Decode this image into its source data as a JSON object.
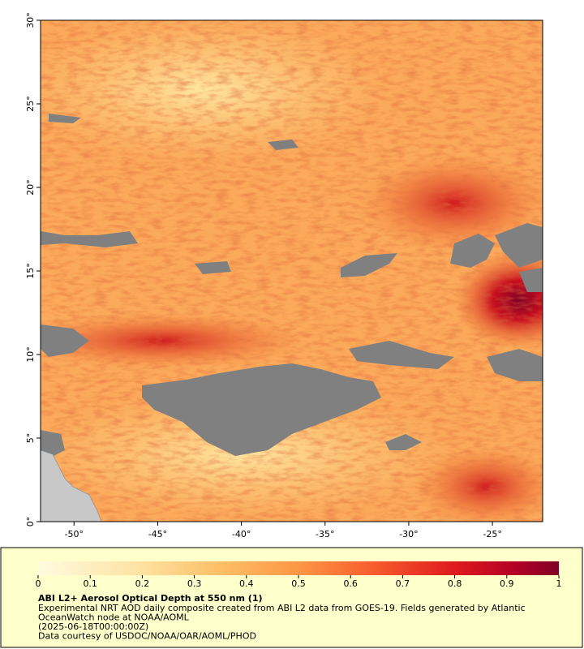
{
  "map": {
    "xlim": [
      -52,
      -22
    ],
    "ylim": [
      0,
      30
    ],
    "xticks": [
      {
        "value": -50,
        "label": "-50°"
      },
      {
        "value": -45,
        "label": "-45°"
      },
      {
        "value": -40,
        "label": "-40°"
      },
      {
        "value": -35,
        "label": "-35°"
      },
      {
        "value": -30,
        "label": "-30°"
      },
      {
        "value": -25,
        "label": "-25°"
      }
    ],
    "yticks": [
      {
        "value": 0,
        "label": "0°"
      },
      {
        "value": 5,
        "label": "5°"
      },
      {
        "value": 10,
        "label": "10°"
      },
      {
        "value": 15,
        "label": "15°"
      },
      {
        "value": 20,
        "label": "20°"
      },
      {
        "value": 25,
        "label": "25°"
      },
      {
        "value": 30,
        "label": "30°"
      }
    ]
  },
  "legend": {
    "range": [
      0,
      1
    ],
    "ticks": [
      0,
      0.1,
      0.2,
      0.3,
      0.4,
      0.5,
      0.6,
      0.7,
      0.8,
      0.9,
      1
    ],
    "title": "ABI L2+ Aerosol Optical Depth at 550 nm (1)",
    "notes": [
      "Experimental NRT AOD daily composite created from ABI L2 data from GOES-19. Fields generated by Atlantic",
      "OceanWatch node at NOAA/AOML",
      "(2025-06-18T00:00:00Z)",
      "Data courtesy of USDOC/NOAA/OAR/AOML/PHOD"
    ]
  }
}
